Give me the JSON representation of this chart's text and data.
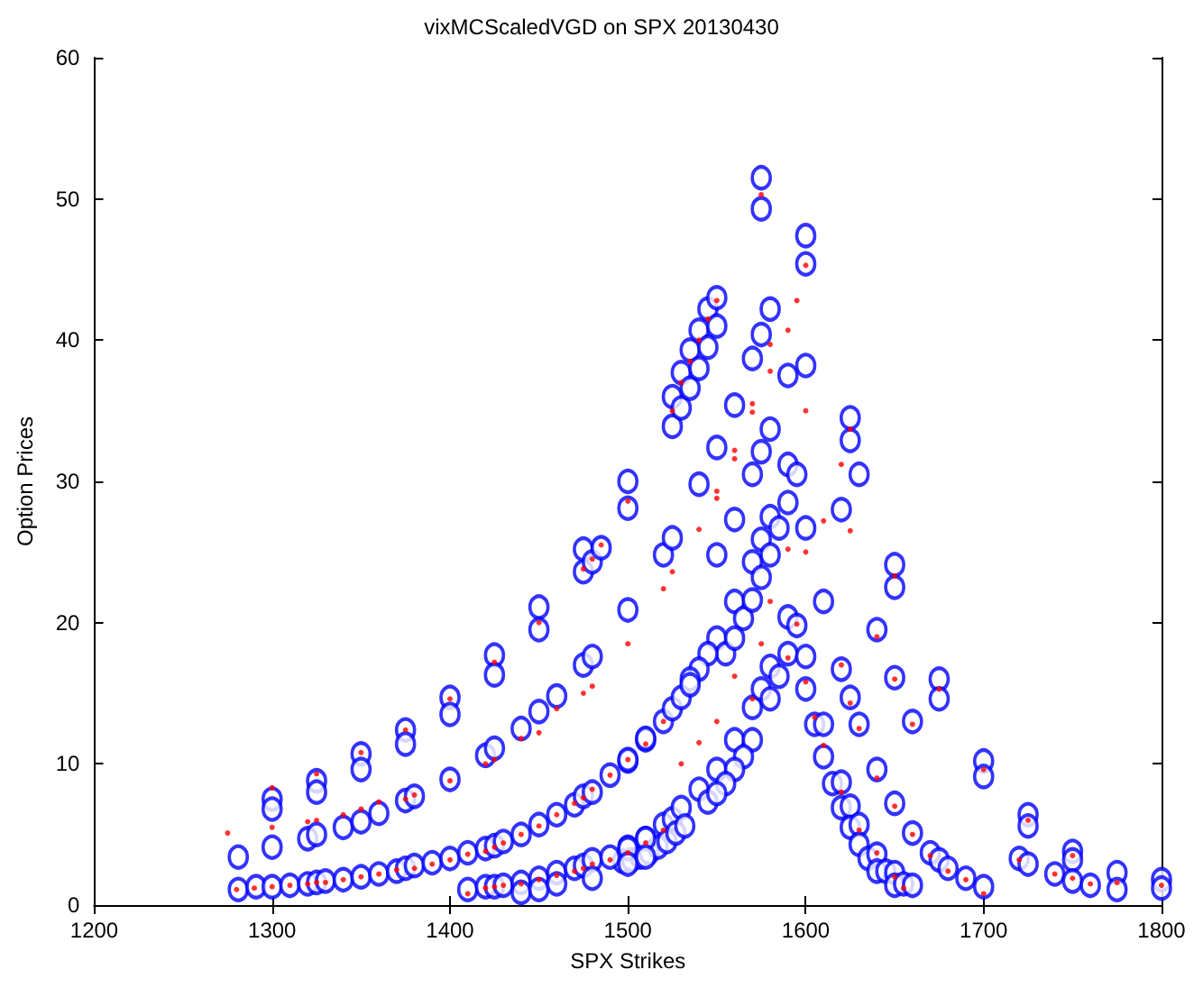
{
  "chart_data": {
    "type": "scatter",
    "title": "vixMCScaledVGD on SPX 20130430",
    "xlabel": "SPX Strikes",
    "ylabel": "Option Prices",
    "xlim": [
      1200,
      1800
    ],
    "xticks": [
      1200,
      1300,
      1400,
      1500,
      1600,
      1700,
      1800
    ],
    "ylim": [
      0,
      60
    ],
    "yticks": [
      0,
      10,
      20,
      30,
      40,
      50,
      60
    ],
    "grid": false,
    "marker": "circle",
    "series": [
      {
        "color": "#0000ff",
        "x": [
          1281,
          1300,
          1300,
          1300,
          1325,
          1325,
          1350,
          1350,
          1375,
          1375,
          1400,
          1400,
          1425,
          1425,
          1450,
          1450,
          1475,
          1475,
          1480,
          1485,
          1500,
          1500,
          1525,
          1525,
          1530,
          1530,
          1535,
          1535,
          1540,
          1540,
          1545,
          1545,
          1550,
          1550,
          1575,
          1575,
          1600,
          1600,
          1625,
          1625,
          1630,
          1650,
          1650,
          1675,
          1675,
          1700,
          1700,
          1725,
          1725,
          1750,
          1750,
          1775,
          1775,
          1800,
          1800,
          1320,
          1325,
          1340,
          1350,
          1360,
          1375,
          1380,
          1400,
          1420,
          1425,
          1440,
          1450,
          1460,
          1475,
          1480,
          1500,
          1520,
          1525,
          1540,
          1550,
          1560,
          1570,
          1575,
          1580,
          1590,
          1600,
          1575,
          1580,
          1570,
          1590,
          1595,
          1590,
          1600,
          1580,
          1585,
          1575,
          1580,
          1570,
          1575,
          1560,
          1550,
          1560,
          1565,
          1570,
          1550,
          1555,
          1560,
          1545,
          1540,
          1535,
          1580,
          1585,
          1590,
          1600,
          1590,
          1595,
          1610,
          1620,
          1640,
          1650,
          1620,
          1625,
          1660,
          1630,
          1640,
          1650,
          1660,
          1670,
          1675,
          1680,
          1690,
          1700,
          1720,
          1725,
          1740,
          1750,
          1760,
          1600,
          1605,
          1610,
          1610,
          1615,
          1620,
          1620,
          1625,
          1625,
          1630,
          1630,
          1635,
          1640,
          1640,
          1645,
          1650,
          1650,
          1655,
          1660,
          1570,
          1575,
          1580,
          1560,
          1570,
          1565,
          1550,
          1560,
          1555,
          1540,
          1545,
          1550,
          1520,
          1525,
          1530,
          1535,
          1510,
          1500,
          1500,
          1510,
          1520,
          1525,
          1530,
          1281,
          1291,
          1300,
          1310,
          1320,
          1325,
          1330,
          1340,
          1350,
          1360,
          1370,
          1375,
          1380,
          1390,
          1400,
          1410,
          1420,
          1425,
          1430,
          1440,
          1450,
          1460,
          1470,
          1475,
          1480,
          1490,
          1500,
          1510,
          1497,
          1502,
          1507,
          1512,
          1517,
          1522,
          1527,
          1532,
          1410,
          1420,
          1425,
          1430,
          1440,
          1440,
          1450,
          1450,
          1460,
          1460,
          1470,
          1475,
          1480,
          1480,
          1490,
          1500,
          1500,
          1510,
          1510
        ],
        "values": [
          3.4,
          7.5,
          6.8,
          4.1,
          8.8,
          8.0,
          10.7,
          9.6,
          12.4,
          11.4,
          14.7,
          13.5,
          17.7,
          16.3,
          21.1,
          19.5,
          25.2,
          23.6,
          24.3,
          25.3,
          30.0,
          28.1,
          33.9,
          36.0,
          35.2,
          37.7,
          36.6,
          39.3,
          38.0,
          40.7,
          39.5,
          42.2,
          41.0,
          43.0,
          51.5,
          49.3,
          47.4,
          45.4,
          34.5,
          32.9,
          30.5,
          24.1,
          22.5,
          16.0,
          14.6,
          10.2,
          9.1,
          6.4,
          5.6,
          3.8,
          3.2,
          2.3,
          1.1,
          1.8,
          1.2,
          4.7,
          5.0,
          5.5,
          5.9,
          6.5,
          7.4,
          7.7,
          8.9,
          10.6,
          11.1,
          12.5,
          13.7,
          14.8,
          17.0,
          17.6,
          20.9,
          24.8,
          26.0,
          29.8,
          32.4,
          35.4,
          38.7,
          40.4,
          42.2,
          37.5,
          38.2,
          32.1,
          33.7,
          30.5,
          31.2,
          30.5,
          28.5,
          26.7,
          27.5,
          26.7,
          25.9,
          24.8,
          24.3,
          23.2,
          27.3,
          24.8,
          21.5,
          20.3,
          21.6,
          18.9,
          17.8,
          18.9,
          17.8,
          16.7,
          16.0,
          16.9,
          16.2,
          17.8,
          17.6,
          20.4,
          19.8,
          21.5,
          28.0,
          19.5,
          16.1,
          16.7,
          14.7,
          13.0,
          12.8,
          9.6,
          7.2,
          5.1,
          3.7,
          3.2,
          2.6,
          1.9,
          1.3,
          3.3,
          2.9,
          2.2,
          1.7,
          1.4,
          15.3,
          12.8,
          12.8,
          10.5,
          8.6,
          8.7,
          6.9,
          7.0,
          5.5,
          5.7,
          4.3,
          3.3,
          3.6,
          2.4,
          2.4,
          2.3,
          1.4,
          1.5,
          1.4,
          14.0,
          15.3,
          14.6,
          11.7,
          11.7,
          10.5,
          9.6,
          9.6,
          8.6,
          8.2,
          7.3,
          7.9,
          13.0,
          13.9,
          14.7,
          15.6,
          11.7,
          10.2,
          4.1,
          4.7,
          5.7,
          6.1,
          6.9,
          1.1,
          1.3,
          1.3,
          1.4,
          1.5,
          1.6,
          1.7,
          1.8,
          2.0,
          2.2,
          2.4,
          2.6,
          2.8,
          3.0,
          3.3,
          3.7,
          4.0,
          4.2,
          4.5,
          5.0,
          5.7,
          6.4,
          7.1,
          7.7,
          8.0,
          9.2,
          10.3,
          11.8,
          3.1,
          3.2,
          3.4,
          3.7,
          4.1,
          4.5,
          5.1,
          5.6,
          1.1,
          1.3,
          1.3,
          1.4,
          1.6,
          0.9,
          1.9,
          1.1,
          2.3,
          1.5,
          2.6,
          2.8,
          3.2,
          1.9,
          3.4,
          4.0,
          2.9,
          4.7,
          3.4
        ]
      },
      {
        "color": "#ff0000",
        "x": [
          1275,
          1280,
          1290,
          1300,
          1300,
          1300,
          1310,
          1320,
          1320,
          1325,
          1325,
          1325,
          1330,
          1340,
          1340,
          1350,
          1350,
          1350,
          1360,
          1360,
          1370,
          1375,
          1375,
          1380,
          1380,
          1390,
          1400,
          1400,
          1400,
          1410,
          1410,
          1420,
          1420,
          1420,
          1425,
          1425,
          1425,
          1425,
          1430,
          1430,
          1440,
          1440,
          1440,
          1450,
          1450,
          1450,
          1450,
          1460,
          1460,
          1460,
          1470,
          1470,
          1475,
          1475,
          1475,
          1475,
          1480,
          1480,
          1480,
          1480,
          1485,
          1490,
          1490,
          1500,
          1500,
          1500,
          1500,
          1510,
          1510,
          1520,
          1520,
          1520,
          1525,
          1525,
          1530,
          1535,
          1540,
          1545,
          1550,
          1540,
          1550,
          1550,
          1560,
          1560,
          1570,
          1570,
          1575,
          1580,
          1580,
          1590,
          1595,
          1600,
          1600,
          1610,
          1620,
          1625,
          1580,
          1590,
          1600,
          1625,
          1650,
          1675,
          1700,
          1725,
          1750,
          1775,
          1800,
          1600,
          1605,
          1610,
          1620,
          1630,
          1640,
          1650,
          1655,
          1660,
          1650,
          1640,
          1620,
          1625,
          1630,
          1640,
          1650,
          1660,
          1670,
          1680,
          1690,
          1700,
          1720,
          1740,
          1750,
          1760,
          1575,
          1590,
          1595,
          1560,
          1570,
          1550,
          1540,
          1530
        ],
        "values": [
          5.1,
          1.1,
          1.2,
          8.3,
          5.5,
          1.3,
          1.4,
          5.9,
          1.5,
          9.3,
          6.0,
          1.6,
          1.6,
          6.4,
          1.8,
          10.8,
          6.8,
          2.0,
          7.3,
          2.2,
          2.5,
          12.4,
          7.5,
          7.8,
          2.6,
          2.9,
          14.6,
          8.8,
          3.2,
          3.6,
          0.8,
          10.0,
          3.8,
          1.2,
          17.2,
          10.3,
          4.1,
          1.3,
          4.4,
          1.4,
          11.8,
          5.0,
          1.5,
          20.0,
          12.2,
          5.6,
          1.8,
          13.9,
          6.4,
          2.1,
          7.2,
          2.4,
          23.8,
          15.0,
          7.6,
          2.6,
          24.5,
          15.5,
          8.2,
          2.9,
          25.5,
          9.2,
          3.2,
          18.5,
          28.6,
          10.3,
          3.7,
          11.4,
          4.4,
          22.4,
          13.0,
          5.3,
          35.0,
          23.6,
          37.0,
          38.5,
          40.0,
          41.5,
          42.8,
          26.6,
          28.8,
          29.3,
          31.6,
          32.2,
          34.9,
          35.5,
          50.3,
          37.8,
          39.7,
          40.7,
          42.8,
          45.3,
          35.0,
          27.2,
          31.2,
          33.7,
          21.5,
          25.2,
          25.0,
          26.5,
          23.3,
          15.3,
          9.6,
          6.0,
          3.5,
          1.6,
          1.4,
          15.8,
          13.3,
          11.3,
          8.0,
          5.3,
          3.7,
          2.0,
          1.2,
          12.8,
          16.0,
          19.0,
          17.0,
          14.3,
          12.5,
          9.0,
          7.0,
          5.0,
          3.5,
          2.4,
          1.8,
          0.8,
          3.2,
          2.2,
          1.9,
          1.5,
          18.5,
          17.5,
          19.9,
          16.2,
          14.6,
          13.0,
          11.5,
          10.0
        ]
      }
    ]
  }
}
